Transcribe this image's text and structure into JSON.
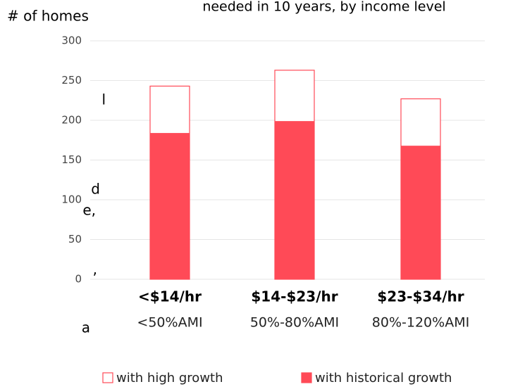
{
  "chart_data": {
    "type": "bar",
    "title": "needed in 10 years, by income level",
    "y_axis_label": "# of homes",
    "categories": [
      "<$14/hr",
      "$14-$23/hr",
      "$23-$34/hr"
    ],
    "category_sublabels": [
      "<50%AMI",
      "50%-80%AMI",
      "80%-120%AMI"
    ],
    "series": [
      {
        "name": "with high growth",
        "color": "#ff4a57",
        "style": "outline",
        "values": [
          243,
          263,
          227
        ]
      },
      {
        "name": "with historical growth",
        "color": "#ff4a57",
        "style": "filled",
        "values": [
          184,
          199,
          168
        ]
      }
    ],
    "ylim": [
      0,
      300
    ],
    "yticks": [
      0,
      50,
      100,
      150,
      200,
      250,
      300
    ],
    "grid": true,
    "side_text": [
      "l",
      "d",
      "e,",
      ",",
      "a"
    ]
  }
}
